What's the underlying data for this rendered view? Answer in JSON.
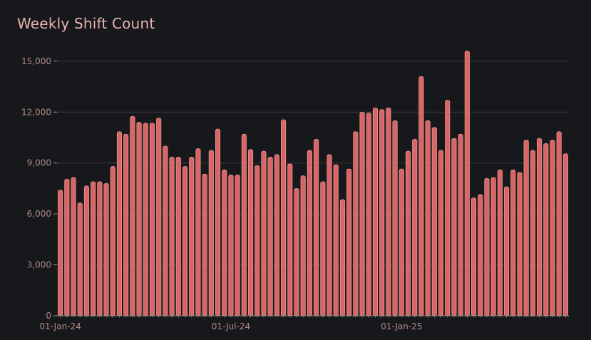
{
  "chart_data": {
    "type": "bar",
    "title": "Weekly Shift Count",
    "xlabel": "",
    "ylabel": "",
    "ylim": [
      0,
      16000
    ],
    "yticks": [
      0,
      3000,
      6000,
      9000,
      12000,
      15000
    ],
    "ytick_labels": [
      "0",
      "3,000",
      "6,000",
      "9,000",
      "12,000",
      "15,000"
    ],
    "xtick_labels": [
      {
        "label": "01-Jan-24",
        "index": 0
      },
      {
        "label": "01-Jul-24",
        "index": 26
      },
      {
        "label": "01-Jan-25",
        "index": 52
      }
    ],
    "bar_color": "#d96566",
    "grid": true,
    "values": [
      7400,
      8050,
      8150,
      6650,
      7650,
      7900,
      7900,
      7800,
      8800,
      10850,
      10700,
      11750,
      11400,
      11350,
      11350,
      11650,
      10000,
      9350,
      9350,
      8800,
      9350,
      9850,
      8350,
      9750,
      11000,
      8600,
      8300,
      8300,
      10700,
      9800,
      8850,
      9700,
      9350,
      9500,
      11550,
      8950,
      7500,
      8250,
      9750,
      10400,
      7900,
      9500,
      8900,
      6850,
      8650,
      10850,
      12000,
      11950,
      12250,
      12150,
      12250,
      11500,
      8650,
      9700,
      10400,
      14100,
      11500,
      11100,
      9750,
      12700,
      10450,
      10700,
      15600,
      6950,
      7150,
      8100,
      8150,
      8600,
      7600,
      8600,
      8450,
      10350,
      9750,
      10450,
      10150,
      10350,
      10850,
      9550
    ]
  }
}
